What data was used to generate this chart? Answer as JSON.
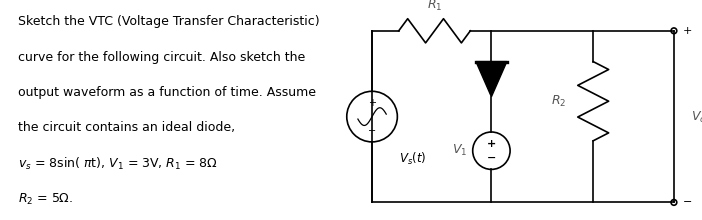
{
  "bg_color": "#ffffff",
  "lc": "#000000",
  "lw": 1.2,
  "text_fontsize": 9.0,
  "circuit_font": 9.0,
  "lines": [
    "Sketch the VTC (Voltage Transfer Characteristic)",
    "curve for the following circuit. Also sketch the",
    "output waveform as a function of time. Assume",
    "the circuit contains an ideal diode,"
  ],
  "line5": "v_s = 8sin( πt), V_1 = 3V, R_1 = 8Ω",
  "line6": "R_2 = 5Ω.",
  "nodes": {
    "RL": 0.53,
    "RR": 0.96,
    "RT": 0.86,
    "RB": 0.08,
    "xD": 0.7,
    "xR2": 0.845
  }
}
